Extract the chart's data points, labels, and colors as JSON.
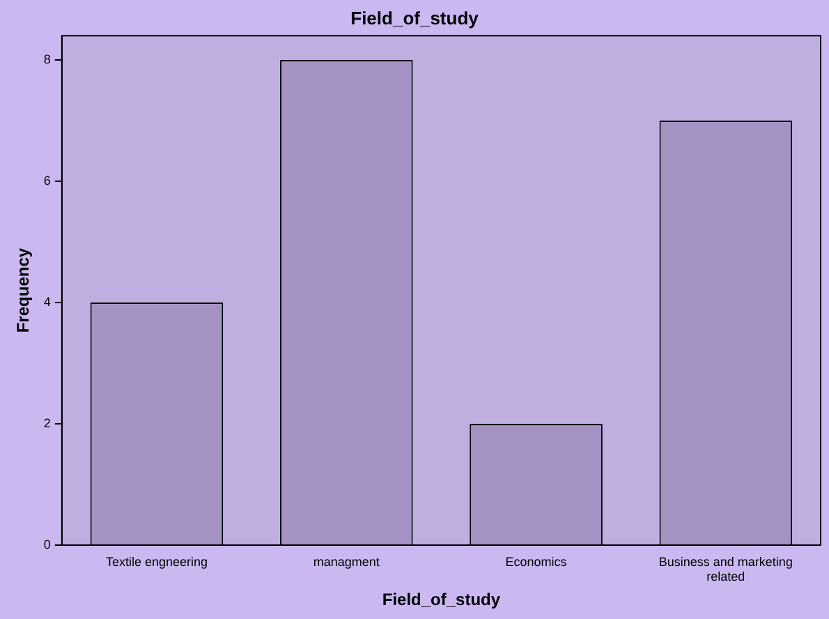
{
  "chart_data": {
    "type": "bar",
    "title": "Field_of_study",
    "xlabel": "Field_of_study",
    "ylabel": "Frequency",
    "categories": [
      "Textile engneering",
      "managment",
      "Economics",
      "Business and marketing related"
    ],
    "values": [
      4,
      8,
      2,
      7
    ],
    "color": "#a492c4",
    "ylim": [
      0,
      8.4
    ],
    "yticks": [
      0,
      2,
      4,
      6,
      8
    ],
    "grid": false,
    "legend": false
  }
}
